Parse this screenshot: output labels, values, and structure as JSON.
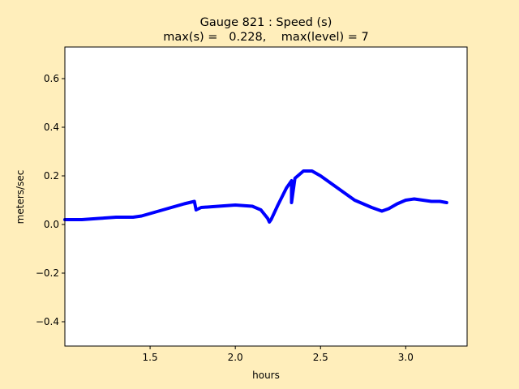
{
  "chart_data": {
    "type": "line",
    "title_line1": "Gauge 821 : Speed (s)",
    "title_line2": "max(s) =   0.228,    max(level) = 7",
    "xlabel": "hours",
    "ylabel": "meters/sec",
    "xlim": [
      1.0,
      3.36
    ],
    "ylim": [
      -0.5,
      0.73
    ],
    "xticks": [
      1.5,
      2.0,
      2.5,
      3.0
    ],
    "xtick_labels": [
      "1.5",
      "2.0",
      "2.5",
      "3.0"
    ],
    "yticks": [
      -0.4,
      -0.2,
      0.0,
      0.2,
      0.4,
      0.6
    ],
    "ytick_labels": [
      "−0.4",
      "−0.2",
      "0.0",
      "0.2",
      "0.4",
      "0.6"
    ],
    "grid": false,
    "colors": {
      "series": "#0000ff",
      "background": "#ffeebb",
      "plot": "#ffffff"
    },
    "series": [
      {
        "x": [
          1.0,
          1.1,
          1.2,
          1.3,
          1.4,
          1.45,
          1.5,
          1.6,
          1.7,
          1.76,
          1.77,
          1.8,
          1.9,
          2.0,
          2.1,
          2.15,
          2.19,
          2.2,
          2.21,
          2.25,
          2.3,
          2.33,
          2.33,
          2.35,
          2.4,
          2.45,
          2.5,
          2.6,
          2.7,
          2.8,
          2.86,
          2.9,
          2.95,
          3.0,
          3.05,
          3.1,
          3.15,
          3.2,
          3.24
        ],
        "y": [
          0.02,
          0.02,
          0.025,
          0.03,
          0.03,
          0.035,
          0.045,
          0.065,
          0.085,
          0.095,
          0.06,
          0.07,
          0.075,
          0.08,
          0.075,
          0.06,
          0.025,
          0.01,
          0.02,
          0.08,
          0.15,
          0.18,
          0.09,
          0.19,
          0.22,
          0.22,
          0.2,
          0.15,
          0.1,
          0.07,
          0.055,
          0.065,
          0.085,
          0.1,
          0.105,
          0.1,
          0.095,
          0.095,
          0.09
        ]
      }
    ]
  }
}
